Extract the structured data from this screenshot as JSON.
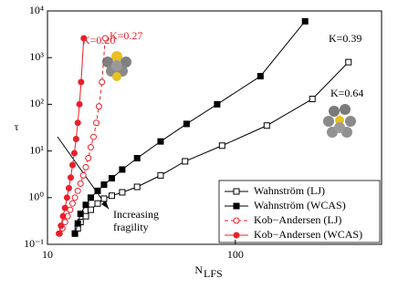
{
  "chart_data": {
    "type": "line",
    "xlabel": "N",
    "xlabel_sub": "LFS",
    "ylabel": "τ",
    "xscale": "log",
    "yscale": "log",
    "xlim": [
      10,
      600
    ],
    "ylim": [
      0.1,
      10000
    ],
    "xticks": [
      10,
      100
    ],
    "yticks": [
      {
        "value": 0.1,
        "label": "10⁻¹"
      },
      {
        "value": 1,
        "label": "10⁰"
      },
      {
        "value": 10,
        "label": "10¹"
      },
      {
        "value": 100,
        "label": "10²"
      },
      {
        "value": 1000,
        "label": "10³"
      },
      {
        "value": 10000,
        "label": "10⁴"
      }
    ],
    "legend": "lower right",
    "series": [
      {
        "name": "Wahnström (LJ)",
        "color": "#000000",
        "marker": "square",
        "filled": false,
        "dashed": false,
        "x": [
          14,
          14.5,
          15,
          16,
          17,
          18.5,
          20,
          22,
          25,
          30,
          40,
          54,
          85,
          147,
          257,
          400
        ],
        "values": [
          0.17,
          0.22,
          0.3,
          0.4,
          0.55,
          0.75,
          0.95,
          1.1,
          1.3,
          1.7,
          3,
          6,
          13,
          35,
          130,
          800
        ]
      },
      {
        "name": "Wahnström (WCAS)",
        "color": "#000000",
        "marker": "square",
        "filled": true,
        "dashed": false,
        "x": [
          14,
          14.5,
          15,
          16,
          17,
          18.5,
          20,
          22,
          25,
          30,
          40,
          55,
          80,
          136,
          235
        ],
        "values": [
          0.17,
          0.28,
          0.45,
          0.7,
          1.0,
          1.4,
          1.9,
          2.6,
          4,
          7,
          16,
          38,
          100,
          400,
          6000
        ]
      },
      {
        "name": "Kob−Andersen (LJ)",
        "color": "#e8202a",
        "marker": "circle",
        "filled": false,
        "dashed": true,
        "x": [
          11.6,
          12,
          12.4,
          12.8,
          13.2,
          13.6,
          14,
          14.5,
          15,
          15.5,
          16,
          16.5,
          17,
          17.6,
          18.2,
          18.8,
          19.5,
          20.3
        ],
        "values": [
          0.17,
          0.22,
          0.3,
          0.4,
          0.55,
          0.75,
          1.0,
          1.4,
          2,
          3,
          4.5,
          7,
          12,
          20,
          40,
          90,
          300,
          2600
        ]
      },
      {
        "name": "Kob−Andersen (WCAS)",
        "color": "#e8202a",
        "marker": "circle",
        "filled": true,
        "dashed": false,
        "x": [
          11.5,
          11.8,
          12.1,
          12.4,
          12.7,
          13,
          13.3,
          13.6,
          13.9,
          14.2,
          14.5,
          14.8,
          15.1,
          15.6
        ],
        "values": [
          0.17,
          0.25,
          0.4,
          0.6,
          1,
          1.6,
          2.7,
          5,
          9,
          18,
          40,
          100,
          300,
          2600
        ]
      }
    ],
    "annotations": [
      {
        "text": "K=0.20",
        "color": "#e8202a"
      },
      {
        "text": "K=0.27",
        "color": "#e8202a"
      },
      {
        "text": "K=0.39",
        "color": "#000000"
      },
      {
        "text": "K=0.64",
        "color": "#000000"
      }
    ],
    "arrow_label": [
      "Increasing",
      "fragility"
    ]
  }
}
